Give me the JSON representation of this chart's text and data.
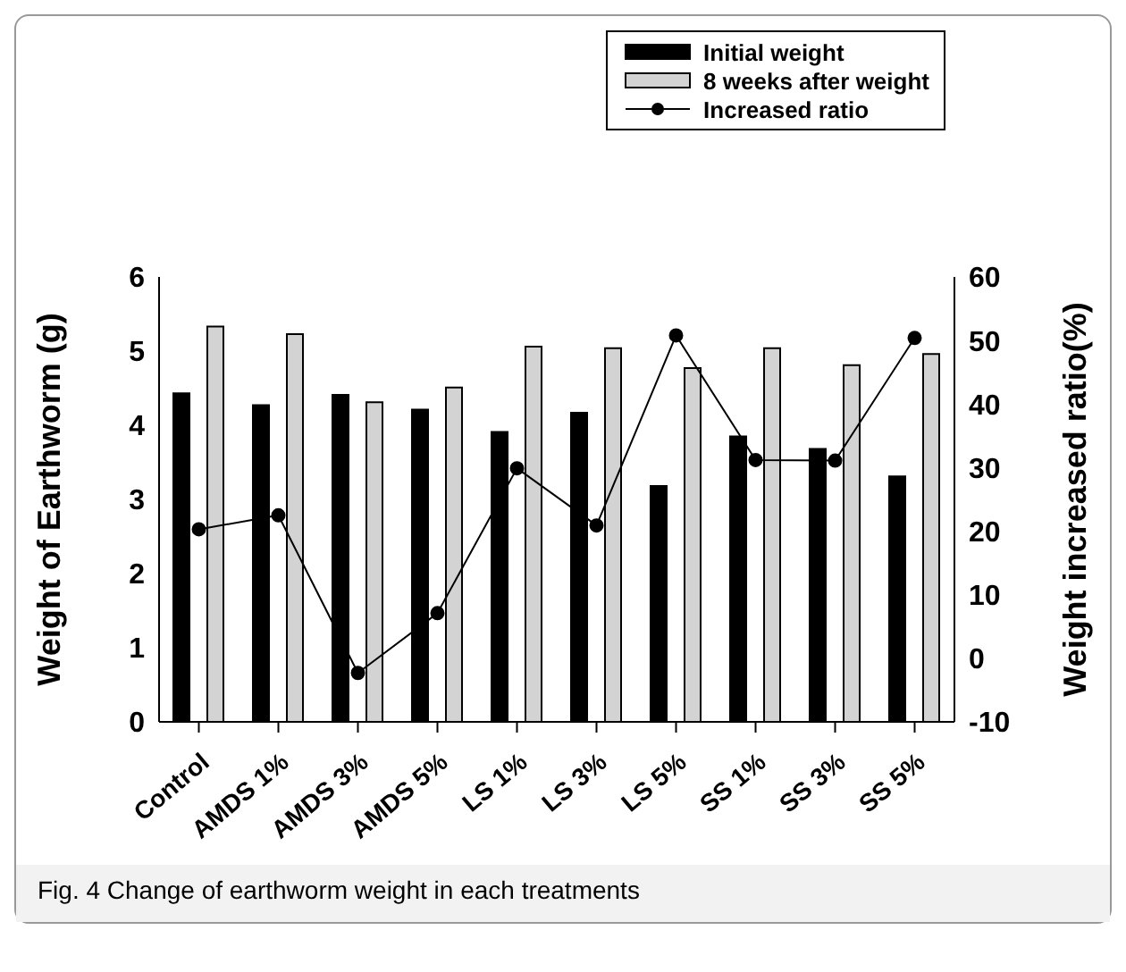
{
  "chart_data": {
    "type": "bar",
    "categories": [
      "Control",
      "AMDS 1%",
      "AMDS 3%",
      "AMDS 5%",
      "LS 1%",
      "LS 3%",
      "LS 5%",
      "SS 1%",
      "SS 3%",
      "SS 5%"
    ],
    "series": [
      {
        "name": "Initial weight",
        "color": "#000000",
        "values": [
          4.43,
          4.27,
          4.41,
          4.21,
          3.91,
          4.17,
          3.18,
          3.85,
          3.68,
          3.31
        ]
      },
      {
        "name": "8 weeks after weight",
        "color": "#d3d3d3",
        "values": [
          5.33,
          5.23,
          4.31,
          4.51,
          5.06,
          5.04,
          4.77,
          5.04,
          4.81,
          4.96
        ]
      },
      {
        "name": "Increased ratio",
        "type": "line",
        "axis": "y2",
        "color": "#000000",
        "marker": "circle",
        "values": [
          20.3,
          22.5,
          -2.3,
          7.1,
          29.9,
          20.9,
          50.8,
          31.2,
          31.1,
          50.4
        ]
      }
    ],
    "ylabel": "Weight of Earthworm (g)",
    "y2label": "Weight increased ratio(%)",
    "ylim": [
      0,
      6
    ],
    "yticks": [
      0,
      1,
      2,
      3,
      4,
      5,
      6
    ],
    "y2lim": [
      -10,
      60
    ],
    "y2ticks": [
      -10,
      0,
      10,
      20,
      30,
      40,
      50,
      60
    ],
    "legend": "top right",
    "annotations": [
      "Fig. 4 Change of earthworm weight in each treatments"
    ]
  }
}
